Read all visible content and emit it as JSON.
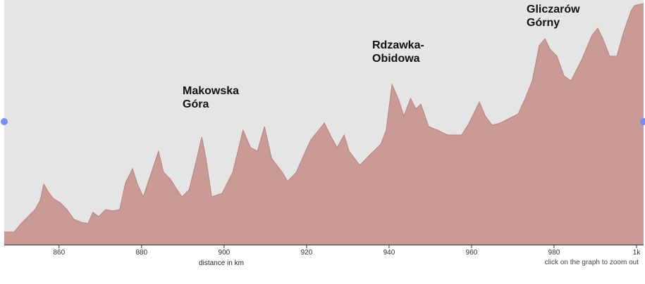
{
  "chart_data": {
    "type": "area",
    "xlabel": "distance in km",
    "note": "click on the graph to zoom out",
    "annotations": [
      [
        "Makowska",
        "Góra"
      ],
      [
        "Rdzawka-",
        "Obidowa"
      ],
      [
        "Gliczarów",
        "Górny"
      ]
    ],
    "color": "#c99a96",
    "xlim": [
      846.7,
      1001.7
    ],
    "ylim": [
      0,
      348
    ],
    "xticks": [
      860,
      880,
      900,
      920,
      940,
      960,
      980,
      {
        "value": 1000,
        "label": "1k"
      }
    ],
    "x": [
      846.7,
      849.1,
      850.8,
      852.5,
      854.2,
      855.4,
      856.3,
      857.3,
      858.5,
      860.2,
      861.9,
      863.6,
      865.3,
      867.0,
      868.2,
      869.6,
      871.3,
      873.0,
      874.7,
      876.1,
      877.8,
      879.0,
      880.4,
      882.4,
      884.1,
      885.3,
      887.0,
      888.4,
      889.8,
      891.5,
      893.2,
      894.6,
      895.6,
      897.0,
      899.5,
      902.1,
      904.6,
      906.4,
      908.1,
      909.8,
      911.5,
      914.1,
      915.4,
      917.5,
      920.9,
      924.3,
      926.0,
      927.4,
      929.1,
      930.3,
      932.9,
      935.4,
      938.0,
      939.3,
      940.7,
      942.2,
      943.6,
      945.2,
      946.5,
      947.7,
      949.6,
      951.7,
      954.2,
      957.6,
      959.4,
      961.9,
      963.3,
      965.0,
      967.0,
      971.3,
      973.0,
      974.7,
      976.4,
      977.8,
      979.0,
      980.7,
      982.4,
      984.1,
      986.7,
      989.2,
      990.6,
      991.8,
      993.5,
      995.2,
      996.9,
      998.7,
      999.5,
      1001.7
    ],
    "values": [
      18,
      18,
      30,
      40,
      50,
      63,
      86,
      76,
      66,
      60,
      50,
      36,
      32,
      30,
      46,
      40,
      50,
      48,
      50,
      88,
      108,
      86,
      68,
      103,
      133,
      103,
      93,
      80,
      68,
      78,
      118,
      153,
      123,
      68,
      73,
      103,
      163,
      138,
      133,
      168,
      123,
      103,
      90,
      103,
      148,
      173,
      153,
      138,
      156,
      133,
      113,
      128,
      143,
      163,
      228,
      208,
      183,
      208,
      193,
      200,
      168,
      163,
      156,
      156,
      173,
      203,
      183,
      170,
      173,
      186,
      208,
      233,
      283,
      293,
      278,
      268,
      240,
      233,
      263,
      298,
      308,
      293,
      268,
      268,
      303,
      333,
      340,
      343
    ]
  }
}
